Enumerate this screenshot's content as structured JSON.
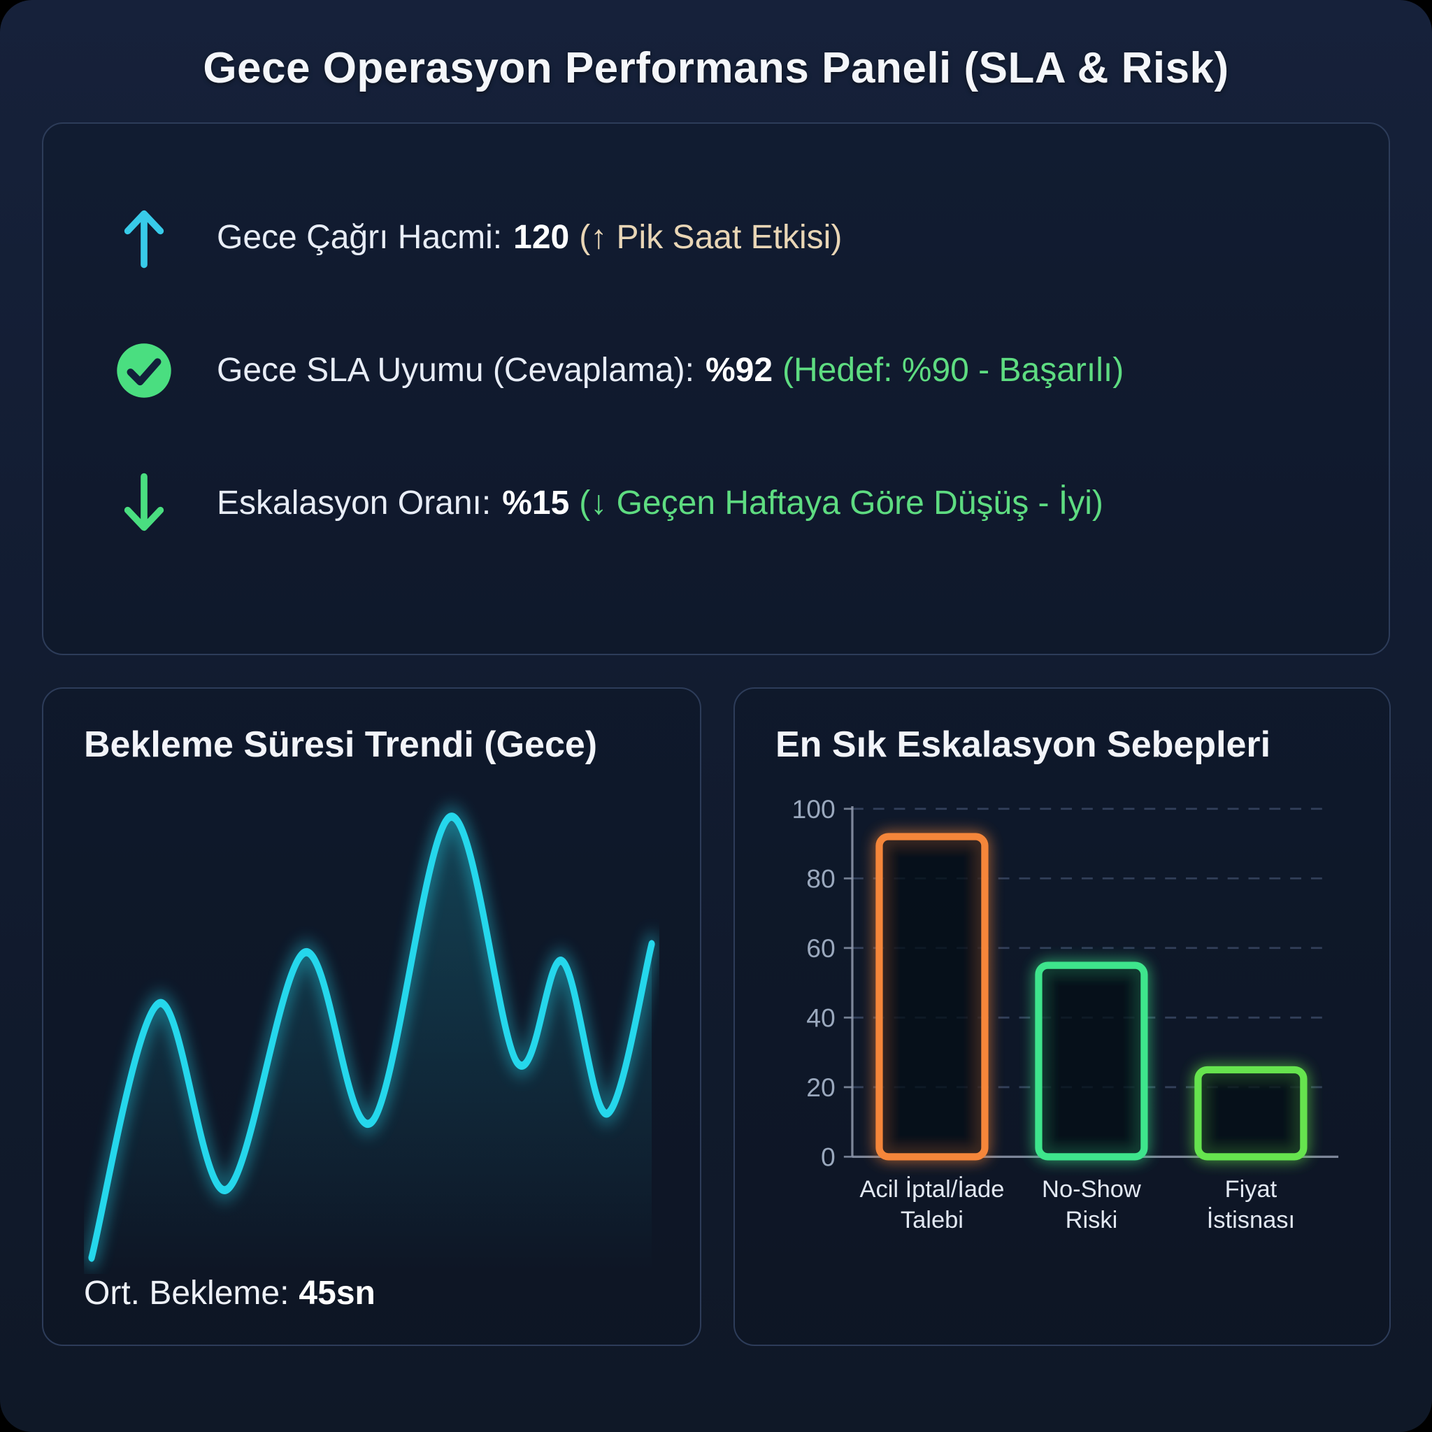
{
  "title": "Gece Operasyon Performans Paneli (SLA & Risk)",
  "kpis": [
    {
      "icon": "arrow-up-icon",
      "label": "Gece Çağrı Hacmi:",
      "value": "120",
      "note": "(↑ Pik Saat Etkisi)",
      "note_color": "#e9d6b6",
      "icon_color": "#38cbe9"
    },
    {
      "icon": "check-circle-icon",
      "label": "Gece SLA Uyumu (Cevaplama):",
      "value": "%92",
      "note": "(Hedef: %90 - Başarılı)",
      "note_color": "#5edc81",
      "icon_color": "#4ade80"
    },
    {
      "icon": "arrow-down-icon",
      "label": "Eskalasyon Oranı:",
      "value": "%15",
      "note": "(↓ Geçen Haftaya Göre Düşüş - İyi)",
      "note_color": "#5edc81",
      "icon_color": "#4ade80"
    }
  ],
  "left_panel": {
    "title": "Bekleme Süresi Trendi (Gece)",
    "footer_label": "Ort. Bekleme:",
    "footer_value": "45sn"
  },
  "right_panel": {
    "title": "En Sık Eskalasyon Sebepleri"
  },
  "chart_data": [
    {
      "type": "line",
      "title": "Bekleme Süresi Trendi (Gece)",
      "x": [
        0,
        12,
        24,
        38,
        50,
        64,
        76,
        84,
        92,
        100
      ],
      "values": [
        18,
        48,
        26,
        54,
        34,
        70,
        41,
        53,
        35,
        55
      ],
      "unit": "seconds (estimated – axes unlabeled in source)",
      "average_annotation": "Ort. Bekleme: 45sn",
      "line_color": "#25d7ec",
      "area_fill": "rgba(37,215,236,0.14)",
      "grid": false,
      "legend": false,
      "ylim": [
        0,
        80
      ]
    },
    {
      "type": "bar",
      "title": "En Sık Eskalasyon Sebepleri",
      "categories": [
        "Acil İptal/İade Talebi",
        "No-Show Riski",
        "Fiyat İstisnası"
      ],
      "label_lines": [
        [
          "Acil İptal/İade",
          "Talebi"
        ],
        [
          "No-Show",
          "Riski"
        ],
        [
          "Fiyat",
          "İstisnası"
        ]
      ],
      "values": [
        92,
        55,
        25
      ],
      "bar_colors": [
        "#f5863a",
        "#3ee58c",
        "#66e44e"
      ],
      "ylim": [
        0,
        100
      ],
      "yticks": [
        0,
        20,
        40,
        60,
        80,
        100
      ],
      "grid": "dashed horizontal",
      "bar_style": "hollow rounded outline with neon glow",
      "legend": false
    }
  ],
  "colors": {
    "background": "#131e33",
    "panel_border": "#2d3c59",
    "title_text": "#f4f6fa",
    "body_text": "#e8edf6",
    "accent_cyan": "#38cbe9",
    "accent_green": "#4ade80",
    "accent_orange": "#f5863a",
    "accent_lime": "#66e44e",
    "axis_gray": "#9aa8bd"
  }
}
